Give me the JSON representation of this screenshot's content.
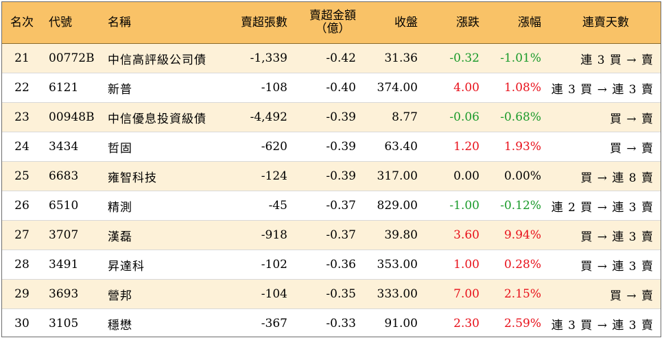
{
  "colors": {
    "header_bg": "#f9c267",
    "row_odd_bg": "#fdf1d8",
    "up": "#e8101a",
    "down": "#1a9a2a"
  },
  "headers": {
    "rank": "名次",
    "code": "代號",
    "name": "名稱",
    "net_sell_lots": "賣超張數",
    "net_sell_amount_line1": "賣超金額",
    "net_sell_amount_line2": "（億）",
    "close": "收盤",
    "change": "漲跌",
    "change_pct": "漲幅",
    "streak": "連賣天數"
  },
  "rows": [
    {
      "rank": "21",
      "code": "00772B",
      "name": "中信高評級公司債",
      "net_sell_lots": "-1,339",
      "net_sell_amount": "-0.42",
      "close": "31.36",
      "change": "-0.32",
      "change_pct": "-1.01%",
      "direction": "down",
      "streak": "連 3 買 → 賣"
    },
    {
      "rank": "22",
      "code": "6121",
      "name": "新普",
      "net_sell_lots": "-108",
      "net_sell_amount": "-0.40",
      "close": "374.00",
      "change": "4.00",
      "change_pct": "1.08%",
      "direction": "up",
      "streak": "連 3 買 → 連 3 賣"
    },
    {
      "rank": "23",
      "code": "00948B",
      "name": "中信優息投資級債",
      "net_sell_lots": "-4,492",
      "net_sell_amount": "-0.39",
      "close": "8.77",
      "change": "-0.06",
      "change_pct": "-0.68%",
      "direction": "down",
      "streak": "買 → 賣"
    },
    {
      "rank": "24",
      "code": "3434",
      "name": "哲固",
      "net_sell_lots": "-620",
      "net_sell_amount": "-0.39",
      "close": "63.40",
      "change": "1.20",
      "change_pct": "1.93%",
      "direction": "up",
      "streak": "買 → 賣"
    },
    {
      "rank": "25",
      "code": "6683",
      "name": "雍智科技",
      "net_sell_lots": "-124",
      "net_sell_amount": "-0.39",
      "close": "317.00",
      "change": "0.00",
      "change_pct": "0.00%",
      "direction": "flat",
      "streak": "買 → 連 8 賣"
    },
    {
      "rank": "26",
      "code": "6510",
      "name": "精測",
      "net_sell_lots": "-45",
      "net_sell_amount": "-0.37",
      "close": "829.00",
      "change": "-1.00",
      "change_pct": "-0.12%",
      "direction": "down",
      "streak": "連 2 買 → 連 3 賣"
    },
    {
      "rank": "27",
      "code": "3707",
      "name": "漢磊",
      "net_sell_lots": "-918",
      "net_sell_amount": "-0.37",
      "close": "39.80",
      "change": "3.60",
      "change_pct": "9.94%",
      "direction": "up",
      "streak": "買 → 連 3 賣"
    },
    {
      "rank": "28",
      "code": "3491",
      "name": "昇達科",
      "net_sell_lots": "-102",
      "net_sell_amount": "-0.36",
      "close": "353.00",
      "change": "1.00",
      "change_pct": "0.28%",
      "direction": "up",
      "streak": "買 → 連 3 賣"
    },
    {
      "rank": "29",
      "code": "3693",
      "name": "營邦",
      "net_sell_lots": "-104",
      "net_sell_amount": "-0.35",
      "close": "333.00",
      "change": "7.00",
      "change_pct": "2.15%",
      "direction": "up",
      "streak": "買 → 賣"
    },
    {
      "rank": "30",
      "code": "3105",
      "name": "穩懋",
      "net_sell_lots": "-367",
      "net_sell_amount": "-0.33",
      "close": "91.00",
      "change": "2.30",
      "change_pct": "2.59%",
      "direction": "up",
      "streak": "連 3 買 → 連 3 賣"
    }
  ]
}
